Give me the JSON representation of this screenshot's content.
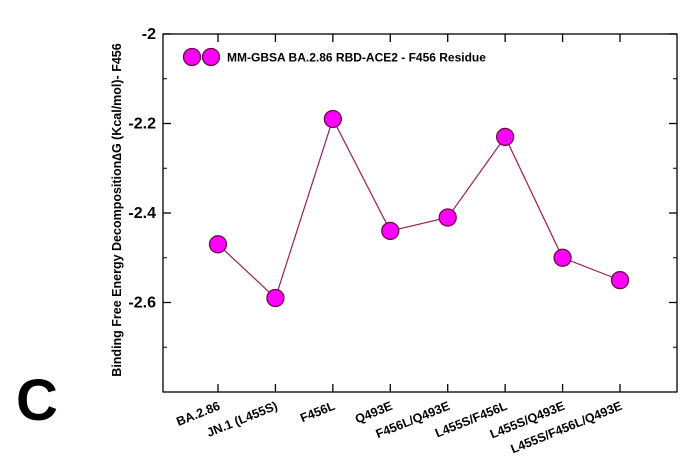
{
  "panel_label": "C",
  "chart_data": {
    "type": "line",
    "legend": {
      "label": "MM-GBSA BA.2.86 RBD-ACE2 -  F456 Residue",
      "placement": "top-left"
    },
    "ylabel": "Binding Free Energy Decomposition∆G (Kcal/mol)- F456",
    "xlabel": "",
    "ylim": [
      -2.8,
      -2.0
    ],
    "y_ticks": [
      -2.0,
      -2.2,
      -2.4,
      -2.6
    ],
    "y_tick_labels": [
      "-2",
      "-2.2",
      "-2.4",
      "-2.6"
    ],
    "grid": false,
    "categories": [
      "BA.2.86",
      "JN.1 (L455S)",
      "F456L",
      "Q493E",
      "F456L/Q493E",
      "L455S/F456L",
      "L455S/Q493E",
      "L455S/F456L/Q493E"
    ],
    "values": [
      -2.47,
      -2.59,
      -2.19,
      -2.44,
      -2.41,
      -2.23,
      -2.5,
      -2.55
    ],
    "colors": {
      "marker": "#ff00ff",
      "marker_edge": "#6a0a45",
      "line": "#9b1d5f",
      "axis": "#000000"
    }
  }
}
